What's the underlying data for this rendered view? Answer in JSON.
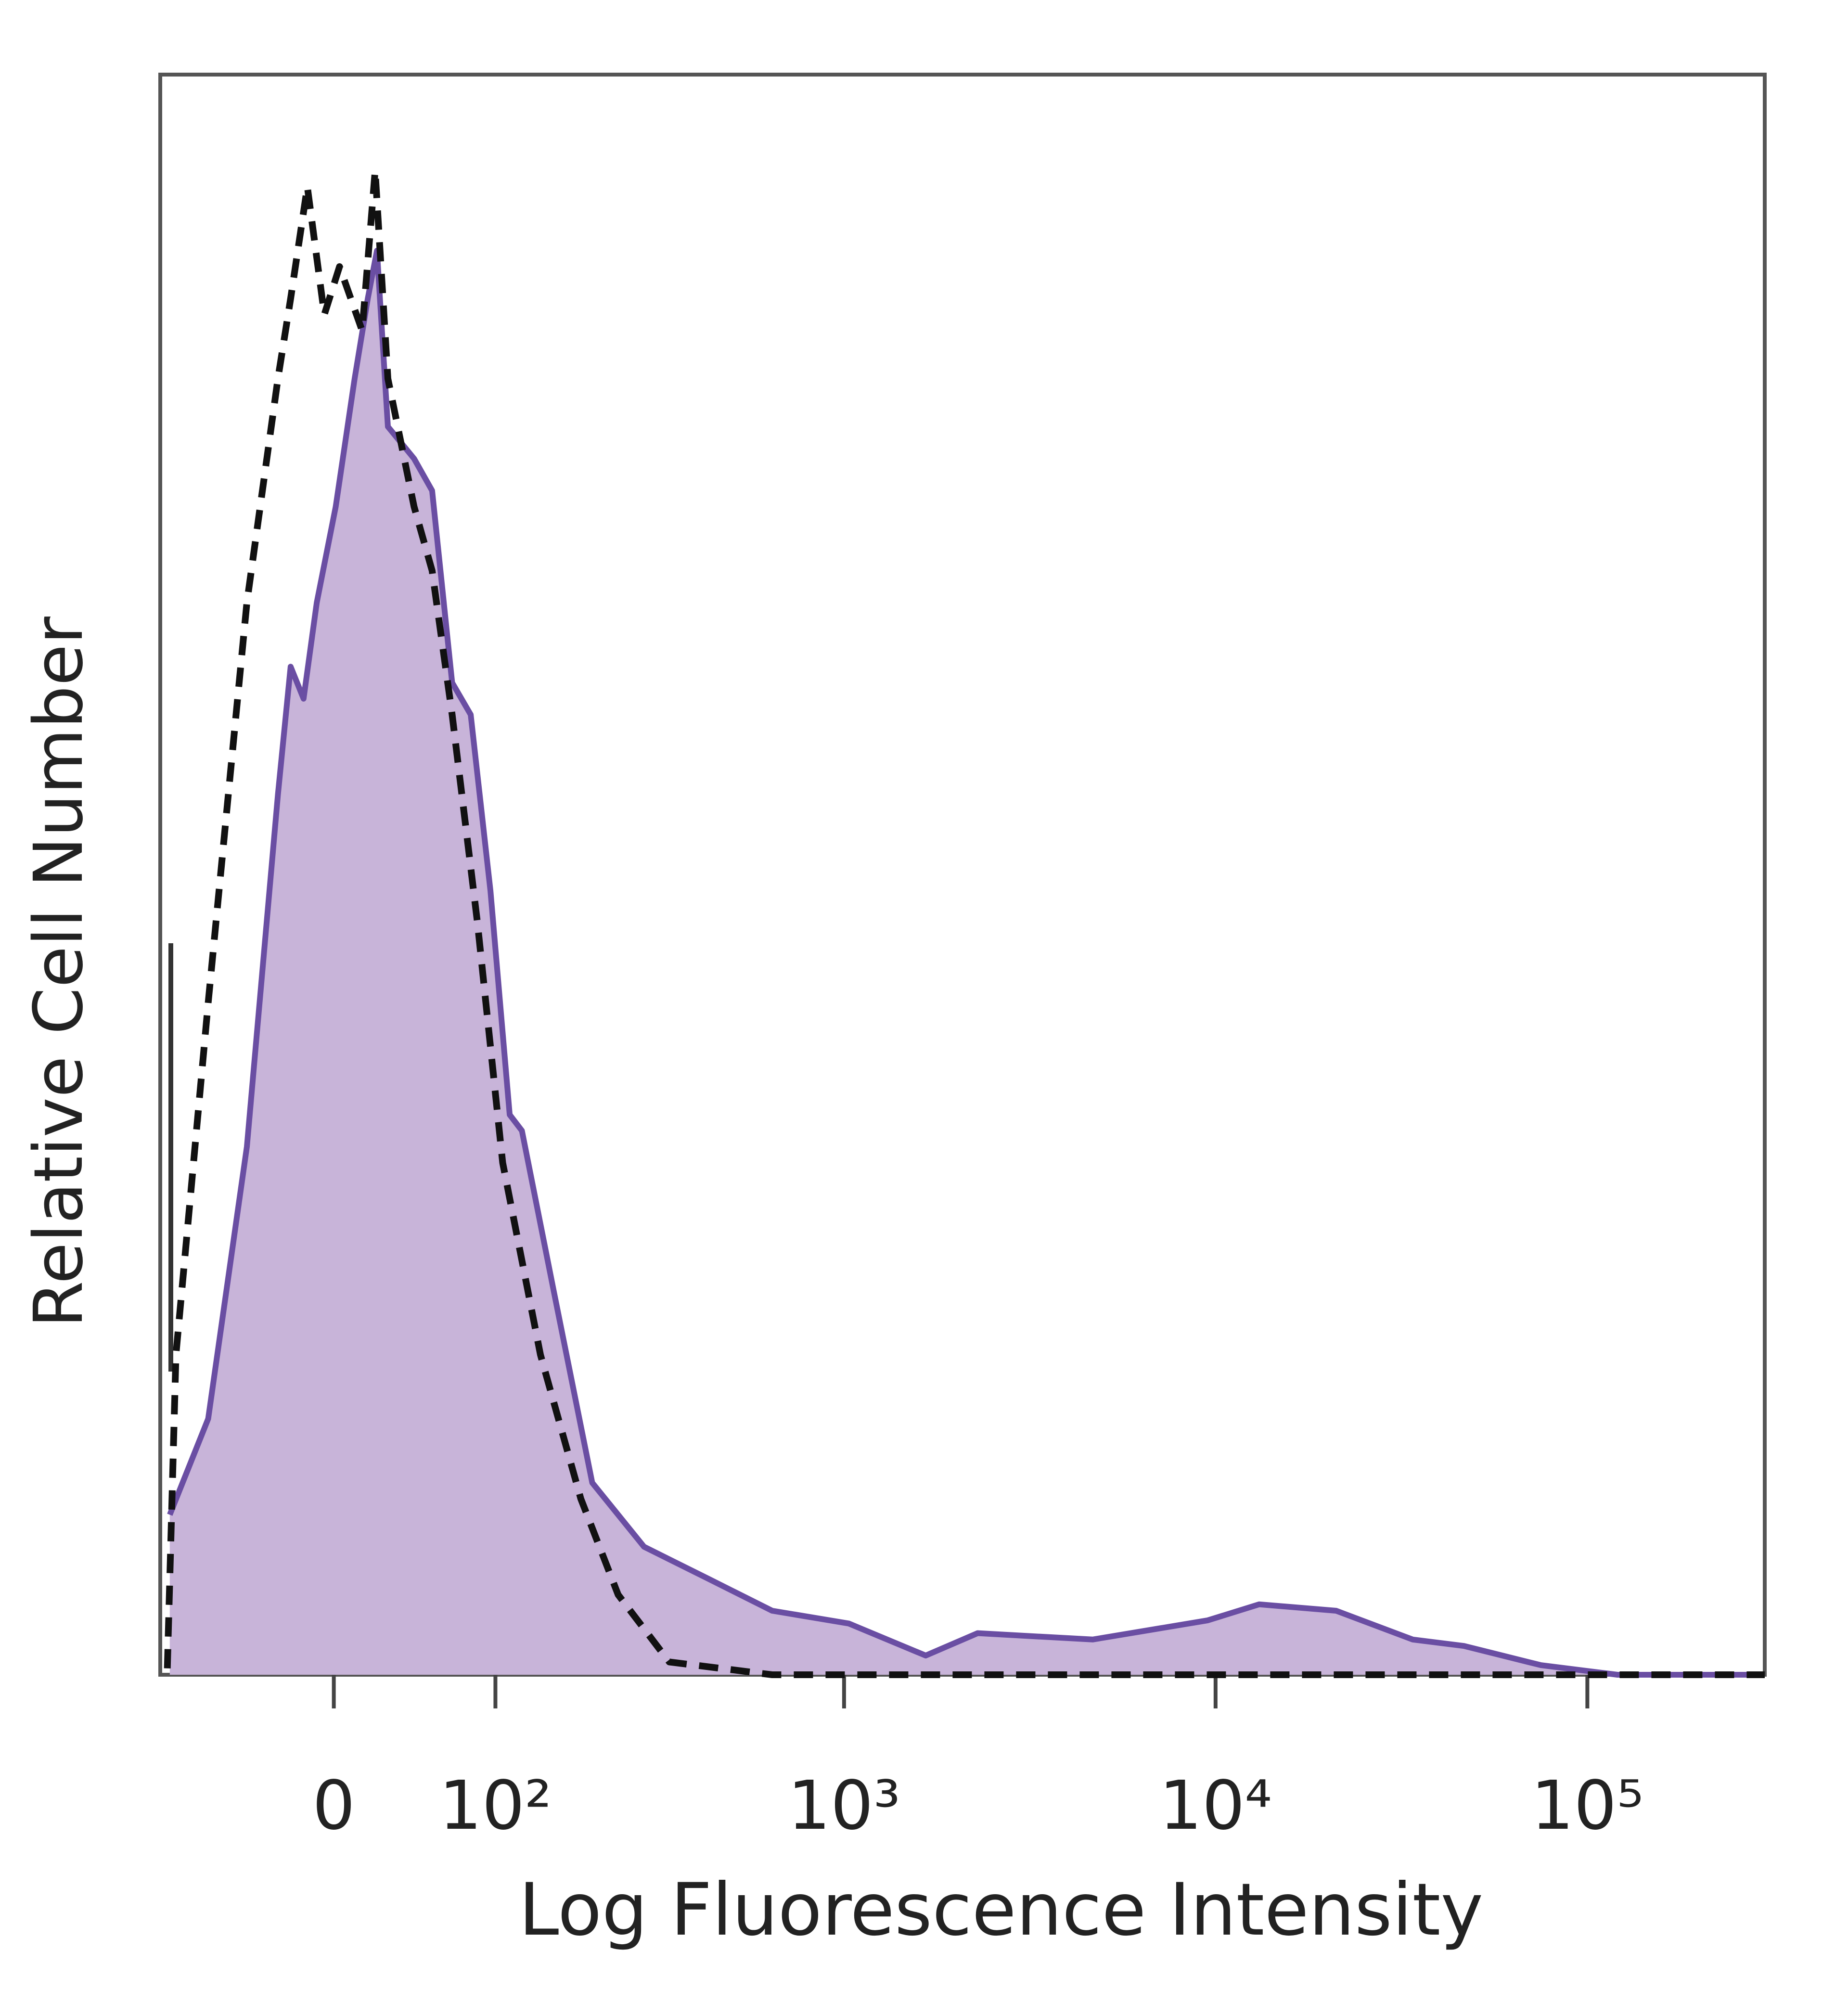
{
  "chart_data": {
    "type": "histogram-overlay",
    "x_label": "Log Fluorescence Intensity",
    "y_label": "Relative Cell Number",
    "xscale": "biexponential",
    "xlim": [
      -110,
      300000
    ],
    "ylim": [
      0,
      100
    ],
    "xticks": [
      0,
      {
        "value": 100,
        "label": "10²"
      },
      {
        "value": 1000,
        "label": "10³"
      },
      {
        "value": 10000,
        "label": "10⁴"
      },
      {
        "value": 100000,
        "label": "10⁵"
      }
    ],
    "series": [
      {
        "color": "#6a4ea3",
        "fill": "#c8b4d9",
        "dashed": false,
        "x": [
          -102,
          -73,
          -48,
          -30,
          -23,
          -16,
          -9,
          1,
          11,
          18,
          23,
          29,
          44,
          55,
          68,
          81,
          96,
          112,
          123,
          155,
          202,
          284,
          428,
          639,
          1030,
          1660,
          2290,
          4670,
          9530,
          13100,
          21100,
          33900,
          46600,
          75000,
          120500,
          300000
        ],
        "values": [
          10,
          16,
          33,
          55,
          63,
          61,
          67,
          73,
          81,
          86,
          89,
          78,
          76,
          74,
          62,
          60,
          49,
          35,
          34,
          24,
          12,
          8,
          6,
          4,
          3.2,
          1.2,
          2.6,
          2.2,
          3.4,
          4.4,
          4,
          2.2,
          1.8,
          0.6,
          0,
          0
        ]
      },
      {
        "color": "#111111",
        "fill": null,
        "dashed": true,
        "x": [
          -104,
          -97,
          -73,
          -48,
          -30,
          -23,
          -14,
          -5,
          3,
          15,
          22,
          29,
          44,
          55,
          68,
          86,
          106,
          141,
          187,
          240,
          334,
          639,
          300000
        ],
        "values": [
          0.4,
          20,
          42,
          67,
          81,
          86,
          93,
          85,
          88,
          84,
          94,
          81,
          73,
          69,
          60,
          47,
          32,
          20,
          11,
          5,
          0.8,
          0,
          0
        ]
      }
    ]
  }
}
